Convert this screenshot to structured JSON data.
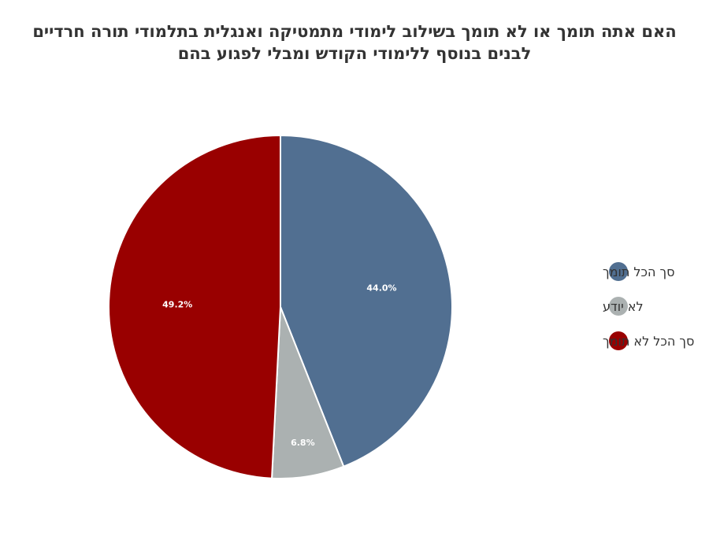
{
  "chart_data": {
    "type": "pie",
    "title_lines": [
      "האם אתה תומך או לא תומך בשילוב לימודי מתמטיקה ואנגלית בתלמודי תורה חרדיים",
      "לבנים בנוסף ללימודי הקודש ומבלי לפגוע בהם"
    ],
    "slices": [
      {
        "label": "סך הכל תומך",
        "value": 44.0,
        "data_label": "44.0%",
        "color": "#516f91"
      },
      {
        "label": "לא יודע",
        "value": 6.8,
        "data_label": "6.8%",
        "color": "#abb1b1"
      },
      {
        "label": "סך הכל לא תומך",
        "value": 49.2,
        "data_label": "49.2%",
        "color": "#990000"
      }
    ],
    "legend_position": "right"
  }
}
